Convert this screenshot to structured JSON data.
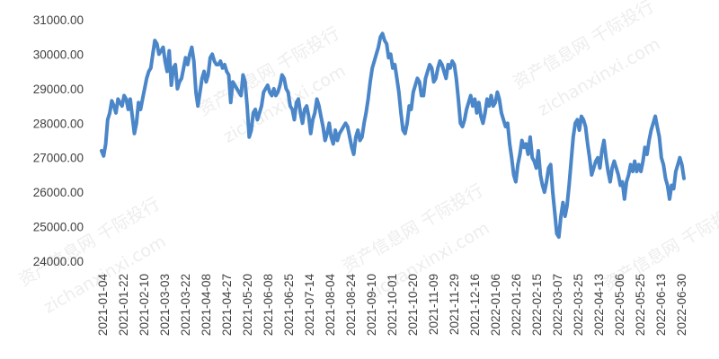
{
  "watermark": {
    "text_cn": "资产信息网 千际投行",
    "text_url": "zichanxinxi.com"
  },
  "chart_data": {
    "type": "line",
    "title": "",
    "xlabel": "",
    "ylabel": "",
    "ylim": [
      24000,
      31000
    ],
    "y_ticks": [
      24000,
      25000,
      26000,
      27000,
      28000,
      29000,
      30000,
      31000
    ],
    "y_tick_labels": [
      "24000.00",
      "25000.00",
      "26000.00",
      "27000.00",
      "28000.00",
      "29000.00",
      "30000.00",
      "31000.00"
    ],
    "x_tick_labels": [
      "2021-01-04",
      "2021-01-22",
      "2021-02-10",
      "2021-03-03",
      "2021-03-22",
      "2021-04-08",
      "2021-04-27",
      "2021-05-20",
      "2021-06-08",
      "2021-06-25",
      "2021-07-14",
      "2021-08-04",
      "2021-08-24",
      "2021-09-10",
      "2021-10-01",
      "2021-10-20",
      "2021-11-09",
      "2021-11-29",
      "2021-12-16",
      "2022-01-06",
      "2022-01-26",
      "2022-02-15",
      "2022-03-07",
      "2022-03-25",
      "2022-04-13",
      "2022-05-06",
      "2022-05-25",
      "2022-06-13",
      "2022-06-30"
    ],
    "grid": false,
    "legend": "none",
    "line_color": "#4a86c8",
    "series": [
      {
        "values": [
          27200,
          27050,
          27400,
          28100,
          28300,
          28650,
          28500,
          28300,
          28700,
          28600,
          28500,
          28800,
          28700,
          28400,
          28700,
          28200,
          27700,
          28000,
          28600,
          28400,
          28700,
          29000,
          29300,
          29500,
          29600,
          30000,
          30400,
          30300,
          30000,
          30100,
          30200,
          29800,
          29500,
          30100,
          29100,
          29600,
          29700,
          29000,
          29200,
          29300,
          29600,
          29900,
          29700,
          30000,
          30200,
          29800,
          28900,
          28500,
          28900,
          29300,
          29500,
          29200,
          29400,
          29900,
          30000,
          29800,
          29700,
          29700,
          29800,
          29600,
          29700,
          29500,
          29400,
          28600,
          29200,
          29100,
          29000,
          28900,
          28800,
          29400,
          29200,
          28500,
          27600,
          27800,
          28300,
          28400,
          28100,
          28300,
          28500,
          28900,
          29000,
          29100,
          28900,
          28800,
          29000,
          28800,
          28900,
          29100,
          29400,
          29300,
          29000,
          28900,
          28500,
          28400,
          28100,
          28600,
          28700,
          28300,
          28000,
          28400,
          28500,
          28200,
          27700,
          28100,
          28300,
          28700,
          28500,
          28200,
          27900,
          27500,
          27700,
          28000,
          27600,
          27400,
          27800,
          27500,
          27700,
          27800,
          27900,
          28000,
          27900,
          27600,
          27300,
          27100,
          27600,
          27800,
          27500,
          27600,
          28000,
          28300,
          28700,
          29200,
          29600,
          29800,
          30000,
          30200,
          30500,
          30600,
          30400,
          30300,
          29900,
          30000,
          29600,
          29700,
          29300,
          28900,
          28300,
          27800,
          27700,
          28000,
          28500,
          28400,
          28900,
          29100,
          29300,
          29200,
          28800,
          28800,
          29300,
          29500,
          29700,
          29600,
          29200,
          29300,
          29600,
          29800,
          29700,
          29500,
          29300,
          29700,
          29600,
          29800,
          29700,
          29300,
          28700,
          28000,
          27900,
          28100,
          28400,
          28600,
          28800,
          28500,
          28700,
          28300,
          28600,
          28200,
          28000,
          28300,
          28700,
          28500,
          28800,
          28500,
          28600,
          28900,
          28700,
          28300,
          28100,
          27900,
          28000,
          27400,
          27000,
          26500,
          26300,
          26800,
          27100,
          27500,
          27300,
          27400,
          27100,
          27600,
          27000,
          26900,
          26700,
          27200,
          26500,
          26200,
          26000,
          26300,
          26700,
          26800,
          26000,
          25400,
          24800,
          24700,
          25300,
          25700,
          25300,
          25600,
          26200,
          26900,
          27600,
          28000,
          28100,
          27800,
          28200,
          28100,
          27900,
          27400,
          27000,
          26500,
          26700,
          26900,
          27000,
          26700,
          27200,
          27500,
          27000,
          26600,
          26300,
          26700,
          26900,
          26700,
          26500,
          26200,
          26300,
          25800,
          26300,
          26500,
          26800,
          26600,
          26900,
          26600,
          26800,
          26600,
          26900,
          27300,
          27100,
          27500,
          27800,
          28000,
          28200,
          27900,
          27600,
          27000,
          26800,
          26400,
          26200,
          25800,
          26200,
          26100,
          26600,
          26800,
          27000,
          26800,
          26400
        ]
      }
    ]
  }
}
